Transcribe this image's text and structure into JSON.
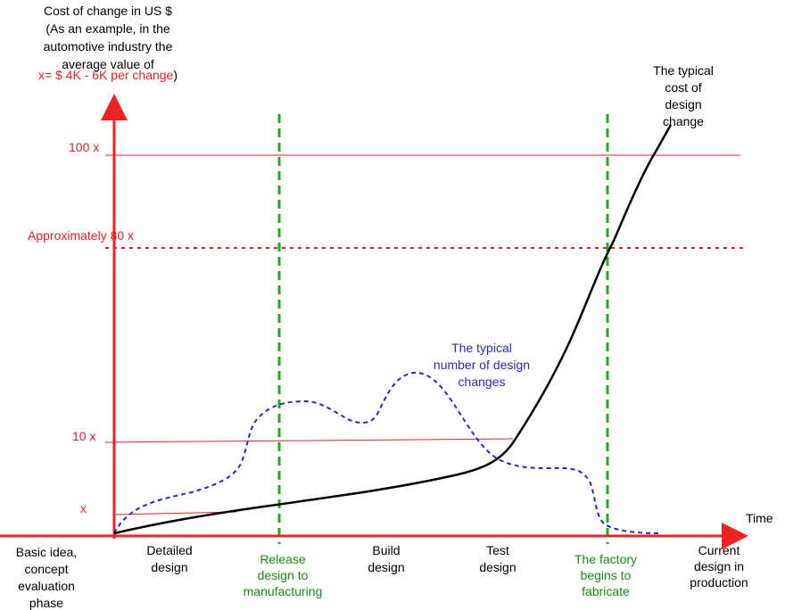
{
  "y_axis_title": {
    "lines": [
      "Cost of change in US $",
      "(As an example, in the",
      "automotive industry the",
      "average value of"
    ],
    "last_line_red": "x= $ 4K - 6K  per change",
    "last_line_close": ")"
  },
  "cost_levels": {
    "level_100x": "100 x",
    "level_80x": "Approximately 80 x",
    "level_10x": "10 x",
    "level_x": "x"
  },
  "x_axis_label": "Time",
  "phases": {
    "basic": [
      "Basic idea,",
      "concept",
      "evaluation",
      "phase"
    ],
    "detailed": [
      "Detailed",
      "design"
    ],
    "release": [
      "Release",
      "design to",
      "manufacturing"
    ],
    "build": [
      "Build",
      "design"
    ],
    "test": [
      "Test",
      "design"
    ],
    "factory": [
      "The factory",
      "begins to",
      "fabricate"
    ],
    "current": [
      "Current",
      "design in",
      "production"
    ]
  },
  "curve_labels": {
    "cost_curve": [
      "The typical",
      "cost of",
      "design",
      "change"
    ],
    "changes_curve": [
      "The typical",
      "number of design",
      "changes"
    ]
  },
  "colors": {
    "axis": "#ee2222",
    "reference_lines": "#e0202a",
    "milestones": "#22aa22",
    "changes_curve": "#2b2bb0",
    "cost_curve": "#000000"
  }
}
